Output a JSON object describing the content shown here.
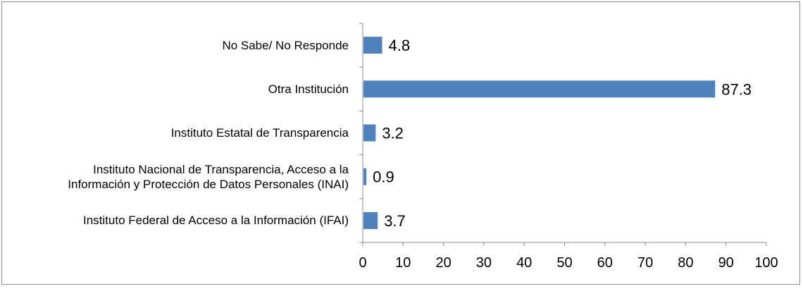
{
  "chart_data": {
    "type": "bar",
    "orientation": "horizontal",
    "categories": [
      "No Sabe/ No Responde",
      "Otra Institución",
      "Instituto Estatal de Transparencia",
      "Instituto Nacional de Transparencia, Acceso a la Información y Protección  de Datos Personales (INAI)",
      "Instituto Federal de Acceso a la Información  (IFAI)"
    ],
    "category_lines": [
      [
        "No Sabe/ No Responde"
      ],
      [
        "Otra Institución"
      ],
      [
        "Instituto Estatal de Transparencia"
      ],
      [
        "Instituto Nacional de Transparencia, Acceso a la",
        "Información y Protección  de Datos Personales (INAI)"
      ],
      [
        "Instituto Federal de Acceso a la Información  (IFAI)"
      ]
    ],
    "values": [
      4.8,
      87.3,
      3.2,
      0.9,
      3.7
    ],
    "value_labels": [
      "4.8",
      "87.3",
      "3.2",
      "0.9",
      "3.7"
    ],
    "xlim": [
      0,
      100
    ],
    "xticks": [
      "0",
      "10",
      "20",
      "30",
      "40",
      "50",
      "60",
      "70",
      "80",
      "90",
      "100"
    ],
    "bar_color": "#4f81bd",
    "grid": false,
    "legend": "none"
  }
}
